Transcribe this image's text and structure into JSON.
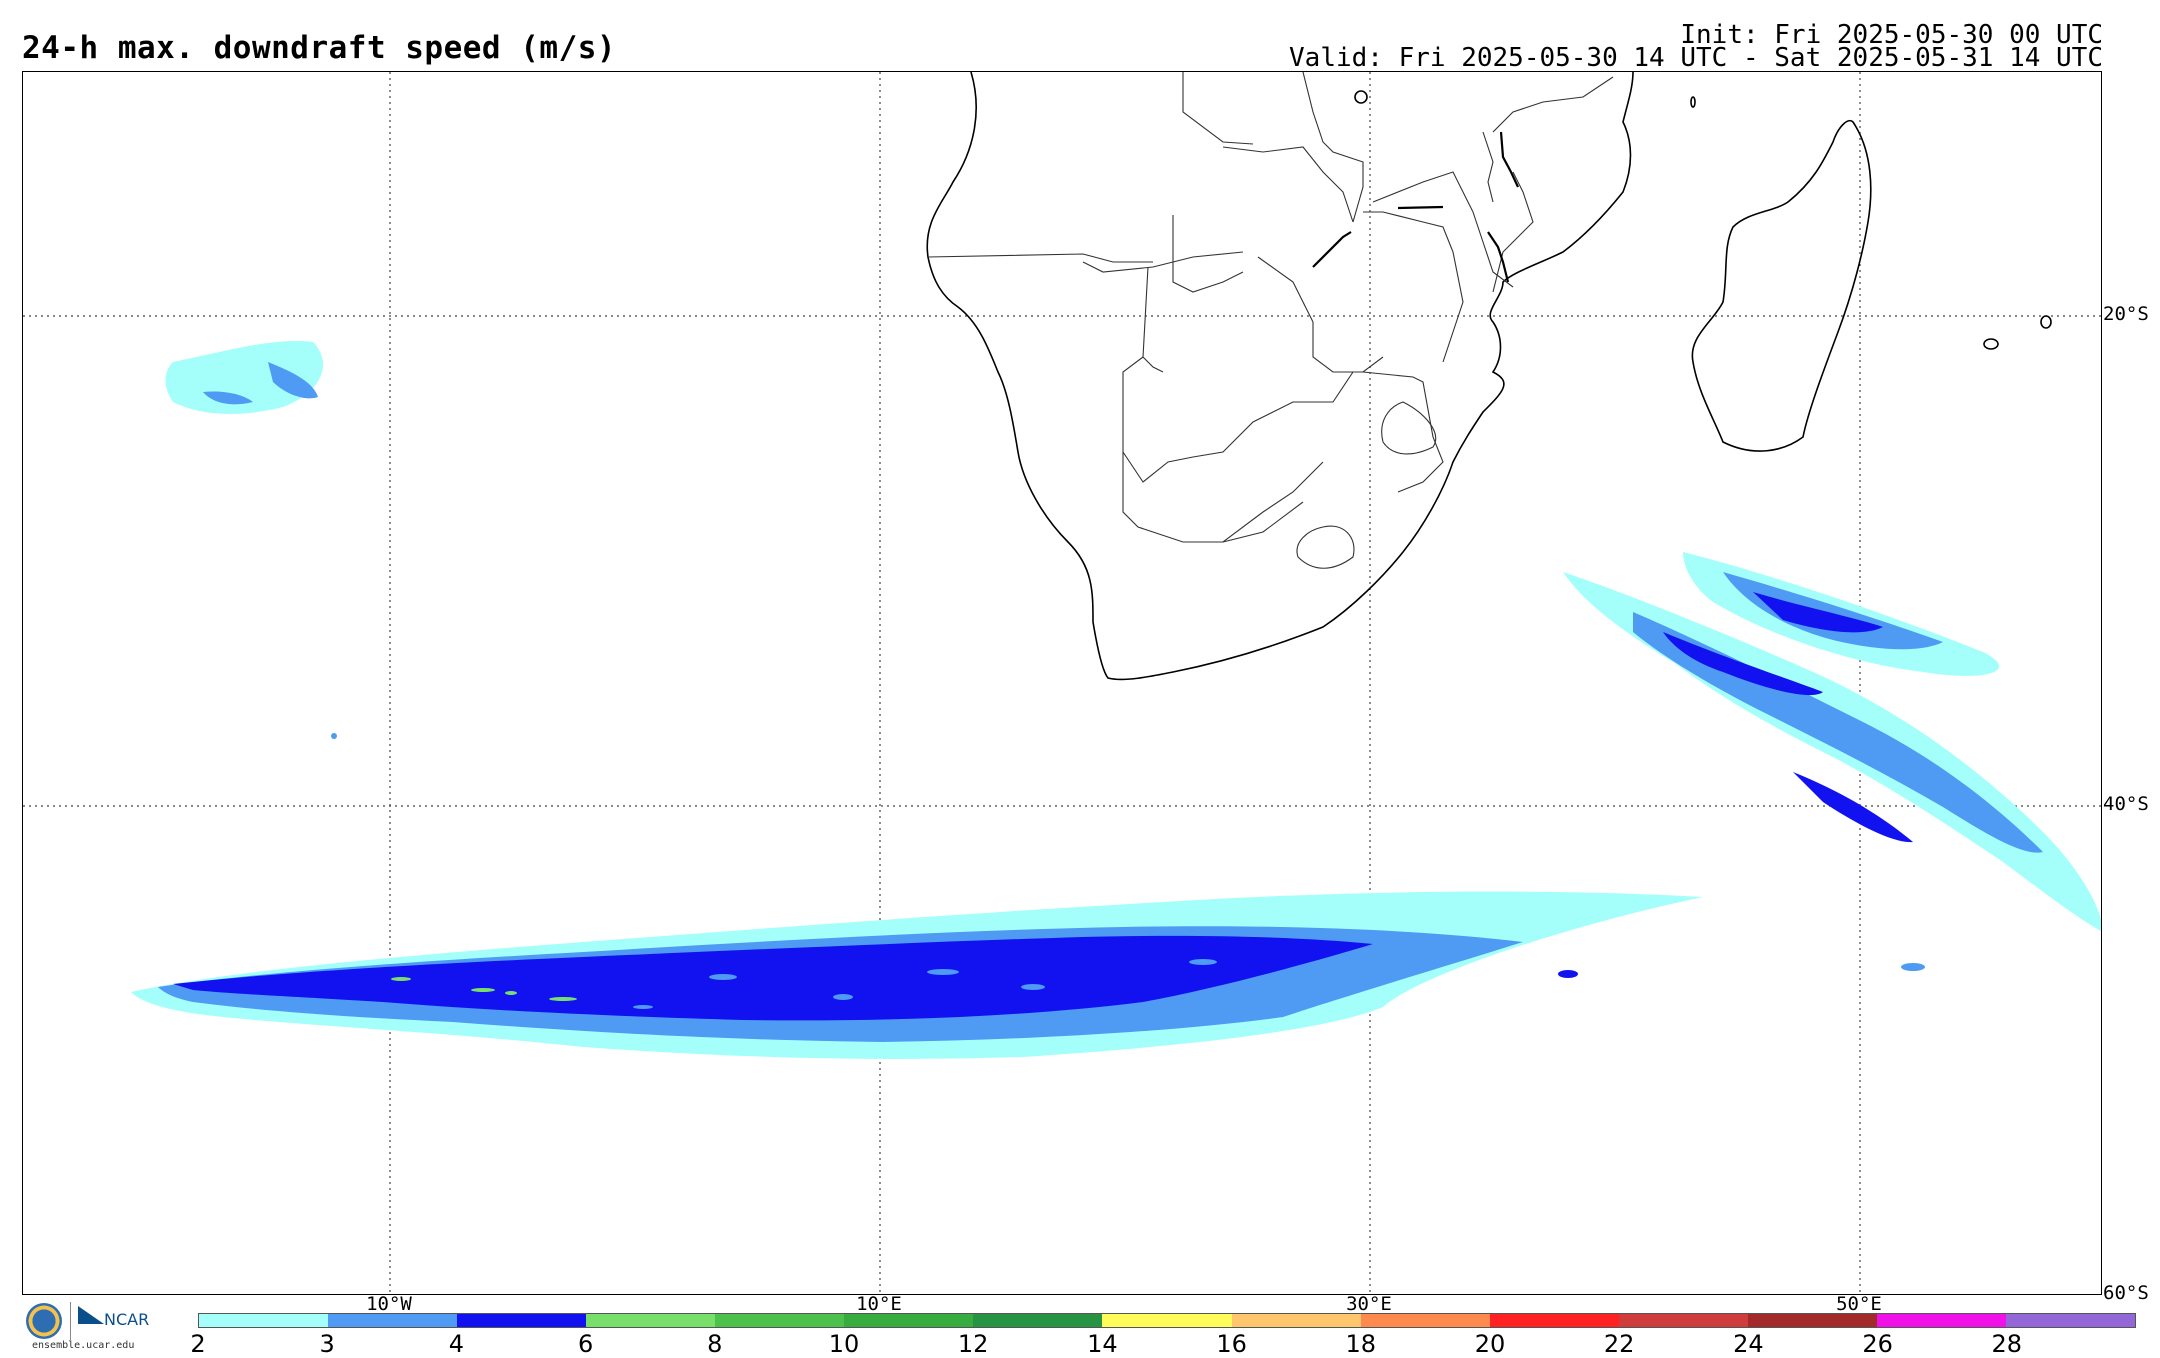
{
  "title": "24-h max. downdraft speed (m/s)",
  "init": "Init: Fri 2025-05-30 00 UTC",
  "valid": "Valid: Fri 2025-05-30 14 UTC - Sat 2025-05-31 14 UTC",
  "lat_labels": [
    "20°S",
    "40°S",
    "60°S"
  ],
  "lon_labels": [
    "10°W",
    "10°E",
    "30°E",
    "50°E"
  ],
  "colorbar": {
    "ticks": [
      "2",
      "3",
      "4",
      "6",
      "8",
      "10",
      "12",
      "14",
      "16",
      "18",
      "20",
      "22",
      "24",
      "26",
      "28"
    ],
    "colors": [
      "#a4fffb",
      "#4f9af2",
      "#1212f0",
      "#78e06a",
      "#4cc24c",
      "#36ad3e",
      "#279444",
      "#fffc5c",
      "#ffc76d",
      "#ff8a4e",
      "#ff2222",
      "#cf3c3c",
      "#a32a2a",
      "#f011e8",
      "#9467d9"
    ]
  },
  "logos": {
    "nsf": "NSF",
    "ncar": "NCAR",
    "url": "ensemble.ucar.edu"
  },
  "colors": {
    "light_cyan": "#a4fffb",
    "light_blue": "#4f9af2",
    "blue": "#1212f0",
    "green": "#78e06a"
  }
}
